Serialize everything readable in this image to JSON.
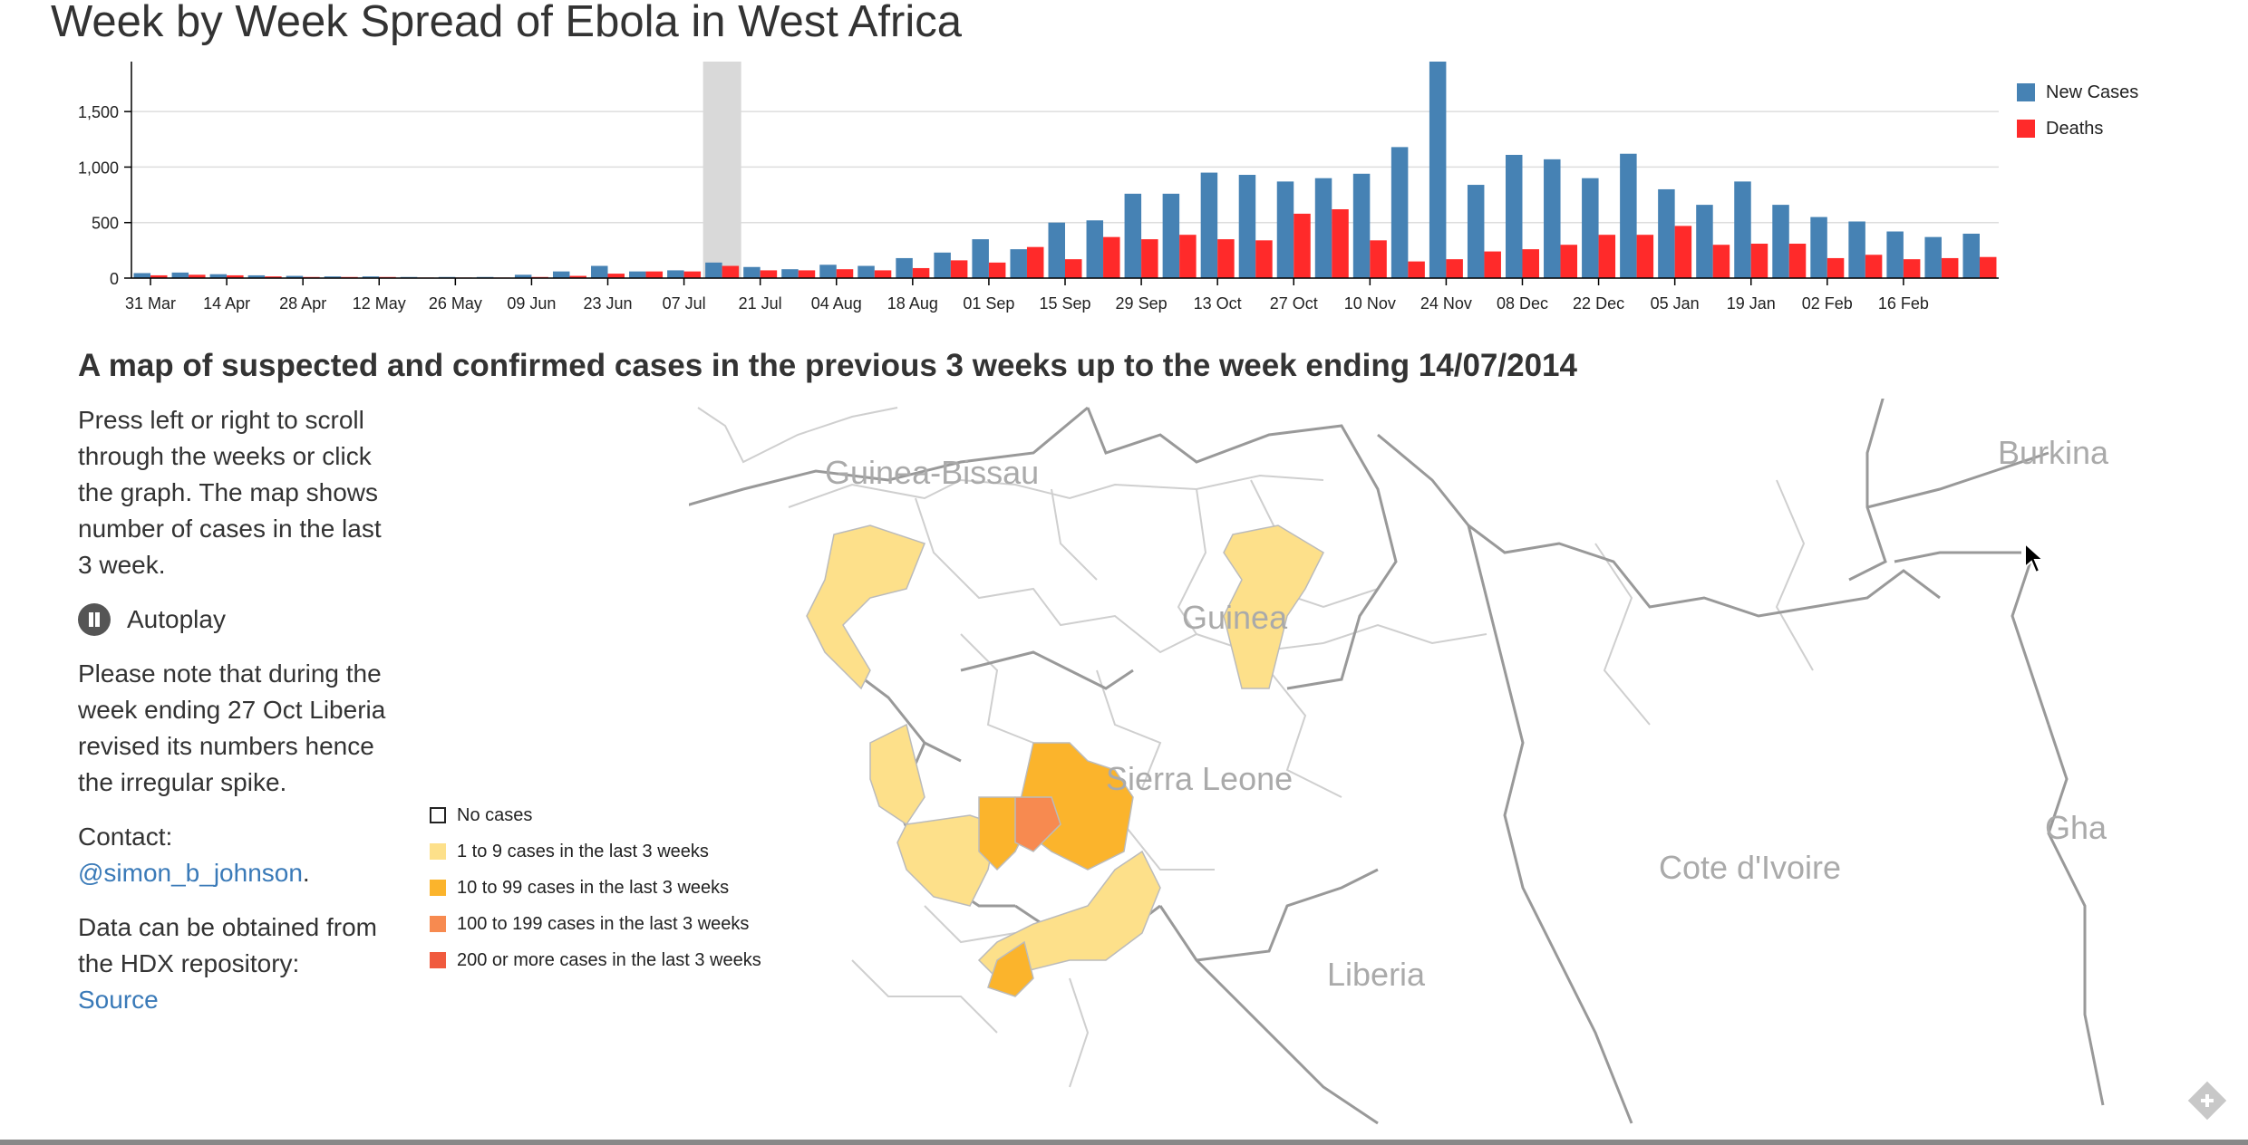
{
  "page_title": "Week by Week Spread of Ebola in West Africa",
  "map_heading": "A map of suspected and confirmed cases in the previous 3 weeks up to the week ending 14/07/2014",
  "sidebar": {
    "instructions": "Press left or right to scroll through the weeks or click the graph. The map shows number of cases in the last 3 week.",
    "autoplay_label": "Autoplay",
    "note": "Please note that during the week ending 27 Oct Liberia revised its numbers hence the irregular spike.",
    "contact_label": "Contact:",
    "contact_handle": "@simon_b_johnson",
    "contact_period": ".",
    "data_text": "Data can be obtained from the HDX repository:",
    "source_link": "Source"
  },
  "map_legend": [
    {
      "label": "No cases",
      "color": "#ffffff"
    },
    {
      "label": "1 to 9 cases in the last 3 weeks",
      "color": "#fde08a"
    },
    {
      "label": "10 to 99 cases in the last 3 weeks",
      "color": "#fbb42c"
    },
    {
      "label": "100 to 199 cases in the last 3 weeks",
      "color": "#f78a50"
    },
    {
      "label": "200 or more cases in the last 3 weeks",
      "color": "#f05a3e"
    }
  ],
  "map_labels": {
    "guinea_bissau": "Guinea-Bissau",
    "guinea": "Guinea",
    "sierra_leone": "Sierra Leone",
    "liberia": "Liberia",
    "cote_divoire": "Cote d'Ivoire",
    "burkina": "Burkina",
    "ghana": "Gha"
  },
  "chart_data": {
    "type": "bar",
    "x_tick_labels": [
      "31 Mar",
      "14 Apr",
      "28 Apr",
      "12 May",
      "26 May",
      "09 Jun",
      "23 Jun",
      "07 Jul",
      "21 Jul",
      "04 Aug",
      "18 Aug",
      "01 Sep",
      "15 Sep",
      "29 Sep",
      "13 Oct",
      "27 Oct",
      "10 Nov",
      "24 Nov",
      "08 Dec",
      "22 Dec",
      "05 Jan",
      "19 Jan",
      "02 Feb",
      "16 Feb"
    ],
    "weeks": 49,
    "selected_week_index": 15,
    "y_ticks": [
      0,
      500,
      1000,
      1500
    ],
    "y_tick_labels": [
      "0",
      "500",
      "1,000",
      "1,500"
    ],
    "ylim": [
      0,
      1950
    ],
    "series": [
      {
        "name": "New Cases",
        "color": "#4682b4",
        "values": [
          45,
          50,
          35,
          25,
          20,
          15,
          15,
          10,
          10,
          10,
          30,
          60,
          110,
          60,
          70,
          140,
          100,
          80,
          120,
          110,
          180,
          230,
          350,
          260,
          500,
          520,
          760,
          760,
          950,
          930,
          870,
          900,
          940,
          1180,
          1950,
          840,
          1110,
          1070,
          900,
          1120,
          800,
          660,
          870,
          660,
          550,
          510,
          420,
          370,
          400
        ]
      },
      {
        "name": "Deaths",
        "color": "#ff2a2a",
        "values": [
          25,
          30,
          25,
          15,
          10,
          10,
          10,
          5,
          5,
          5,
          10,
          20,
          40,
          60,
          60,
          110,
          70,
          70,
          80,
          70,
          90,
          160,
          140,
          280,
          170,
          370,
          350,
          390,
          350,
          340,
          580,
          620,
          340,
          150,
          170,
          240,
          260,
          300,
          390,
          390,
          470,
          300,
          310,
          310,
          180,
          210,
          170,
          180,
          190
        ]
      }
    ]
  }
}
